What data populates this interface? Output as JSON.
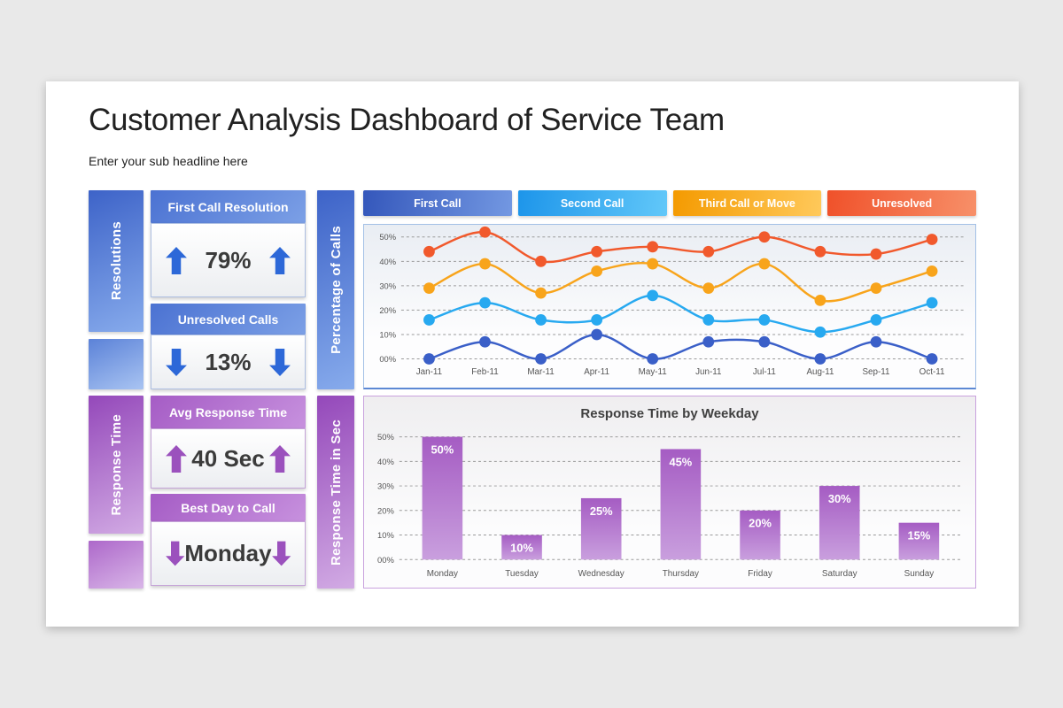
{
  "page": {
    "title": "Customer Analysis Dashboard of Service Team",
    "subtitle": "Enter your sub headline here",
    "background_color": "#e9e9e9",
    "slide_color": "#ffffff"
  },
  "kpi": {
    "sections": [
      {
        "side_label": "Resolutions",
        "axis_label": "Percentage of Calls",
        "theme": "blue",
        "arrow_color": "#2d68d8",
        "cards": [
          {
            "header": "First Call Resolution",
            "value": "79%",
            "direction": "up"
          },
          {
            "header": "Unresolved Calls",
            "value": "13%",
            "direction": "down"
          }
        ]
      },
      {
        "side_label": "Response Time",
        "axis_label": "Response Time in Sec",
        "theme": "purple",
        "arrow_color": "#9b51bd",
        "cards": [
          {
            "header": "Avg Response Time",
            "value": "40 Sec",
            "direction": "up"
          },
          {
            "header": "Best Day to Call",
            "value": "Monday",
            "direction": "down"
          }
        ]
      }
    ]
  },
  "chart_data": [
    {
      "type": "line",
      "title": "",
      "x": [
        "Jan-11",
        "Feb-11",
        "Mar-11",
        "Apr-11",
        "May-11",
        "Jun-11",
        "Jul-11",
        "Aug-11",
        "Sep-11",
        "Oct-11"
      ],
      "series": [
        {
          "name": "First Call",
          "color": "#3a5fc8",
          "values": [
            0,
            7,
            0,
            10,
            0,
            7,
            7,
            0,
            7,
            0
          ]
        },
        {
          "name": "Second Call",
          "color": "#27a9f0",
          "values": [
            16,
            23,
            16,
            16,
            26,
            16,
            16,
            11,
            16,
            23
          ]
        },
        {
          "name": "Third Call or Move",
          "color": "#f8a41b",
          "values": [
            29,
            39,
            27,
            36,
            39,
            29,
            39,
            24,
            29,
            36
          ]
        },
        {
          "name": "Unresolved",
          "color": "#f1592c",
          "values": [
            44,
            52,
            40,
            44,
            46,
            44,
            50,
            44,
            43,
            49
          ]
        }
      ],
      "legend": [
        {
          "label": "First Call",
          "colors": [
            "#3457bb",
            "#7398e2"
          ]
        },
        {
          "label": "Second Call",
          "colors": [
            "#1d95ea",
            "#62c8f9"
          ]
        },
        {
          "label": "Third Call or Move",
          "colors": [
            "#f49a00",
            "#ffc95b"
          ]
        },
        {
          "label": "Unresolved",
          "colors": [
            "#f0512a",
            "#f79069"
          ]
        }
      ],
      "ylim": [
        0,
        50
      ],
      "yticks": [
        "00%",
        "10%",
        "20%",
        "30%",
        "40%",
        "50%"
      ],
      "ylabel": "Percentage of Calls",
      "grid": "dashed-horizontal",
      "legend_position": "top"
    },
    {
      "type": "bar",
      "title": "Response Time by Weekday",
      "categories": [
        "Monday",
        "Tuesday",
        "Wednesday",
        "Thursday",
        "Friday",
        "Saturday",
        "Sunday"
      ],
      "values": [
        50,
        10,
        25,
        45,
        20,
        30,
        15
      ],
      "value_labels": [
        "50%",
        "10%",
        "25%",
        "45%",
        "20%",
        "30%",
        "15%"
      ],
      "bar_colors": [
        "#a55cc3",
        "#c99fde"
      ],
      "ylim": [
        0,
        50
      ],
      "yticks": [
        "00%",
        "10%",
        "20%",
        "30%",
        "40%",
        "50%"
      ],
      "ylabel": "Response Time in Sec",
      "grid": "dashed-horizontal"
    }
  ]
}
